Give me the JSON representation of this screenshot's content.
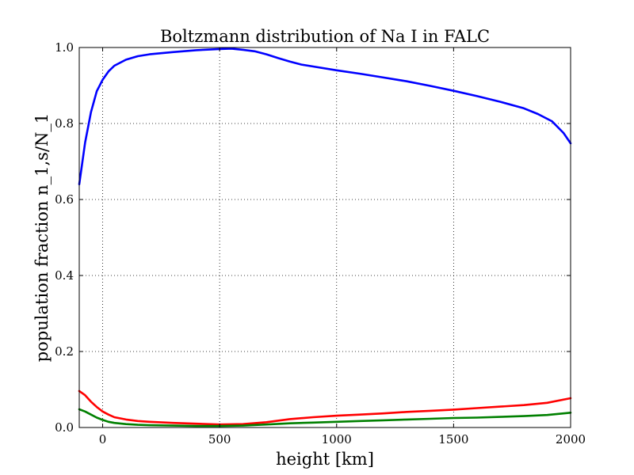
{
  "chart_data": {
    "type": "line",
    "title": "Boltzmann distribution of Na I in FALC",
    "xlabel": "height [km]",
    "ylabel": "population fraction n_1,s/N_1",
    "xlim": [
      -100,
      2000
    ],
    "ylim": [
      0.0,
      1.0
    ],
    "xticks": [
      0,
      500,
      1000,
      1500,
      2000
    ],
    "xtick_labels": [
      "0",
      "500",
      "1000",
      "1500",
      "2000"
    ],
    "yticks": [
      0.0,
      0.2,
      0.4,
      0.6,
      0.8,
      1.0
    ],
    "ytick_labels": [
      "0.0",
      "0.2",
      "0.4",
      "0.6",
      "0.8",
      "1.0"
    ],
    "grid": true,
    "series": [
      {
        "color": "#0000ff",
        "points": [
          [
            -100,
            0.64
          ],
          [
            -75,
            0.75
          ],
          [
            -50,
            0.83
          ],
          [
            -25,
            0.885
          ],
          [
            0,
            0.915
          ],
          [
            25,
            0.937
          ],
          [
            50,
            0.952
          ],
          [
            100,
            0.968
          ],
          [
            150,
            0.977
          ],
          [
            200,
            0.982
          ],
          [
            300,
            0.988
          ],
          [
            400,
            0.993
          ],
          [
            500,
            0.996
          ],
          [
            550,
            0.997
          ],
          [
            600,
            0.994
          ],
          [
            650,
            0.99
          ],
          [
            700,
            0.982
          ],
          [
            750,
            0.972
          ],
          [
            800,
            0.963
          ],
          [
            850,
            0.955
          ],
          [
            900,
            0.95
          ],
          [
            1000,
            0.94
          ],
          [
            1100,
            0.931
          ],
          [
            1200,
            0.921
          ],
          [
            1300,
            0.911
          ],
          [
            1400,
            0.899
          ],
          [
            1500,
            0.886
          ],
          [
            1600,
            0.872
          ],
          [
            1700,
            0.857
          ],
          [
            1800,
            0.84
          ],
          [
            1860,
            0.825
          ],
          [
            1920,
            0.806
          ],
          [
            1970,
            0.775
          ],
          [
            2000,
            0.748
          ]
        ]
      },
      {
        "color": "#ff0000",
        "points": [
          [
            -100,
            0.096
          ],
          [
            -75,
            0.085
          ],
          [
            -50,
            0.068
          ],
          [
            -25,
            0.054
          ],
          [
            0,
            0.042
          ],
          [
            25,
            0.034
          ],
          [
            50,
            0.027
          ],
          [
            100,
            0.021
          ],
          [
            150,
            0.017
          ],
          [
            200,
            0.015
          ],
          [
            300,
            0.012
          ],
          [
            400,
            0.01
          ],
          [
            500,
            0.008
          ],
          [
            600,
            0.009
          ],
          [
            700,
            0.014
          ],
          [
            800,
            0.022
          ],
          [
            900,
            0.027
          ],
          [
            1000,
            0.031
          ],
          [
            1100,
            0.034
          ],
          [
            1200,
            0.037
          ],
          [
            1300,
            0.041
          ],
          [
            1400,
            0.044
          ],
          [
            1500,
            0.047
          ],
          [
            1600,
            0.051
          ],
          [
            1700,
            0.055
          ],
          [
            1800,
            0.059
          ],
          [
            1900,
            0.065
          ],
          [
            2000,
            0.077
          ]
        ]
      },
      {
        "color": "#008000",
        "points": [
          [
            -100,
            0.048
          ],
          [
            -75,
            0.042
          ],
          [
            -50,
            0.034
          ],
          [
            -25,
            0.026
          ],
          [
            0,
            0.02
          ],
          [
            25,
            0.015
          ],
          [
            50,
            0.012
          ],
          [
            100,
            0.009
          ],
          [
            150,
            0.007
          ],
          [
            200,
            0.006
          ],
          [
            300,
            0.005
          ],
          [
            400,
            0.004
          ],
          [
            500,
            0.004
          ],
          [
            600,
            0.005
          ],
          [
            700,
            0.008
          ],
          [
            800,
            0.011
          ],
          [
            900,
            0.013
          ],
          [
            1000,
            0.015
          ],
          [
            1100,
            0.017
          ],
          [
            1200,
            0.019
          ],
          [
            1300,
            0.021
          ],
          [
            1400,
            0.023
          ],
          [
            1500,
            0.025
          ],
          [
            1600,
            0.026
          ],
          [
            1700,
            0.028
          ],
          [
            1800,
            0.03
          ],
          [
            1900,
            0.033
          ],
          [
            2000,
            0.039
          ]
        ]
      }
    ]
  }
}
